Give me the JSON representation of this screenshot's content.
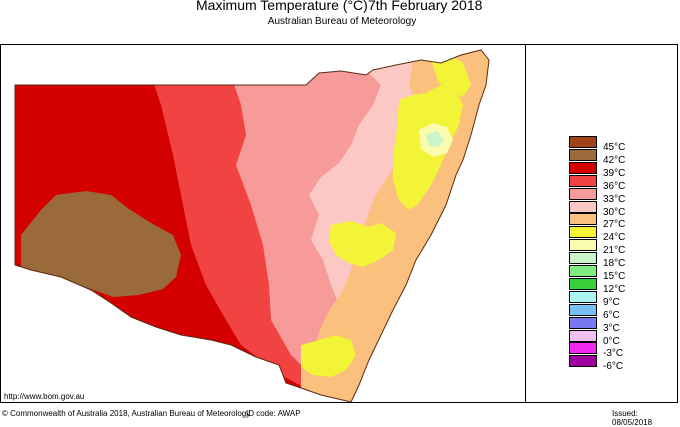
{
  "header": {
    "title_main": "Maximum Temperature (°C)",
    "title_date": "7th February 2018",
    "subtitle": "Australian Bureau of Meteorology"
  },
  "legend": {
    "items": [
      {
        "label": "45°C",
        "color": "#a0421a"
      },
      {
        "label": "42°C",
        "color": "#9a6a3a"
      },
      {
        "label": "39°C",
        "color": "#d40000"
      },
      {
        "label": "36°C",
        "color": "#f24343"
      },
      {
        "label": "33°C",
        "color": "#f79a9a"
      },
      {
        "label": "30°C",
        "color": "#fbc8c4"
      },
      {
        "label": "27°C",
        "color": "#fbc07e"
      },
      {
        "label": "24°C",
        "color": "#f3f338"
      },
      {
        "label": "21°C",
        "color": "#fbfbb0"
      },
      {
        "label": "18°C",
        "color": "#c9f5c9"
      },
      {
        "label": "15°C",
        "color": "#80ee80"
      },
      {
        "label": "12°C",
        "color": "#38d238"
      },
      {
        "label": "9°C",
        "color": "#aef2f2"
      },
      {
        "label": "6°C",
        "color": "#78bff5"
      },
      {
        "label": "3°C",
        "color": "#7878f0"
      },
      {
        "label": "0°C",
        "color": "#f0c0f0"
      },
      {
        "label": "-3°C",
        "color": "#f028f0"
      },
      {
        "label": "-6°C",
        "color": "#a000a0"
      }
    ]
  },
  "map": {
    "colors": {
      "c42": "#9a6a3a",
      "c39": "#d40000",
      "c36": "#f24343",
      "c33": "#f79a9a",
      "c30": "#fbc8c4",
      "c27": "#fbc07e",
      "c24": "#f3f338",
      "c21": "#fbfbb0",
      "c18": "#c9f5c9"
    }
  },
  "footer": {
    "url": "http://www.bom.gov.au",
    "copyright": "© Commonwealth of Australia 2018, Australian Bureau of Meteorology",
    "id_code": "ID code: AWAP",
    "issued": "Issued: 08/05/2018"
  }
}
